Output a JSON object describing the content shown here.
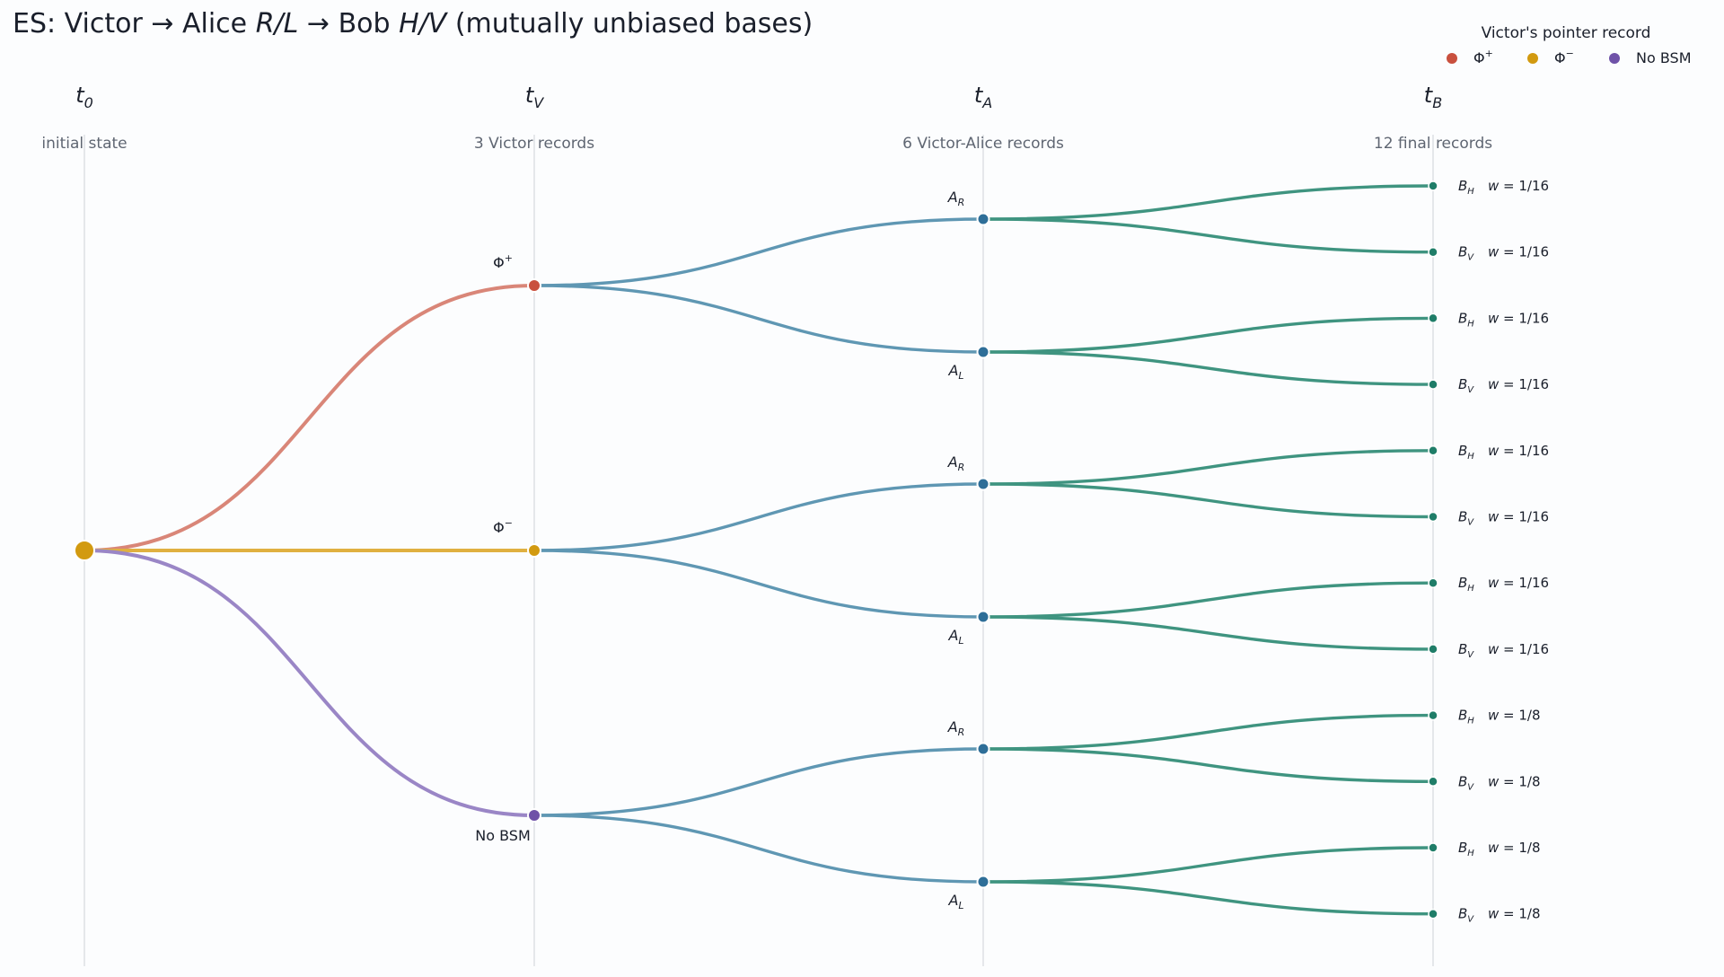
{
  "title": "ES: Victor → Alice R/L → Bob H/V (mutually unbiased bases)",
  "columns": [
    {
      "time": "t",
      "sub": "0",
      "subtitle": "initial state"
    },
    {
      "time": "t",
      "sub": "V",
      "subtitle": "3 Victor records"
    },
    {
      "time": "t",
      "sub": "A",
      "subtitle": "6 Victor-Alice records"
    },
    {
      "time": "t",
      "sub": "B",
      "subtitle": "12 final records"
    }
  ],
  "legend": {
    "title": "Victor's pointer record",
    "items": [
      {
        "label": "Φ",
        "sup": "+",
        "color": "#c9503e"
      },
      {
        "label": "Φ",
        "sup": "−",
        "color": "#d29a10"
      },
      {
        "label": "No BSM",
        "sup": "",
        "color": "#6f52a8"
      }
    ]
  },
  "colors": {
    "root": "#d29a10",
    "alice_edge": "#5f97b3",
    "alice_node": "#2e6e98",
    "bob_edge": "#3f9480",
    "bob_node": "#1f7d68"
  },
  "root": {
    "name": "initial state"
  },
  "victor": [
    {
      "label": "Φ",
      "sup": "+",
      "color": "#c9503e",
      "edge_color": "#d98678"
    },
    {
      "label": "Φ",
      "sup": "−",
      "color": "#d29a10",
      "edge_color": "#e0b040"
    },
    {
      "label": "No BSM",
      "sup": "",
      "color": "#6f52a8",
      "edge_color": "#9a86c6"
    }
  ],
  "alice": [
    {
      "letter": "A",
      "sub": "R",
      "parent": 0
    },
    {
      "letter": "A",
      "sub": "L",
      "parent": 0
    },
    {
      "letter": "A",
      "sub": "R",
      "parent": 1
    },
    {
      "letter": "A",
      "sub": "L",
      "parent": 1
    },
    {
      "letter": "A",
      "sub": "R",
      "parent": 2
    },
    {
      "letter": "A",
      "sub": "L",
      "parent": 2
    }
  ],
  "bob": [
    {
      "letter": "B",
      "sub": "H",
      "weight": "w = 1/16",
      "parent": 0
    },
    {
      "letter": "B",
      "sub": "V",
      "weight": "w = 1/16",
      "parent": 0
    },
    {
      "letter": "B",
      "sub": "H",
      "weight": "w = 1/16",
      "parent": 1
    },
    {
      "letter": "B",
      "sub": "V",
      "weight": "w = 1/16",
      "parent": 1
    },
    {
      "letter": "B",
      "sub": "H",
      "weight": "w = 1/16",
      "parent": 2
    },
    {
      "letter": "B",
      "sub": "V",
      "weight": "w = 1/16",
      "parent": 2
    },
    {
      "letter": "B",
      "sub": "H",
      "weight": "w = 1/16",
      "parent": 3
    },
    {
      "letter": "B",
      "sub": "V",
      "weight": "w = 1/16",
      "parent": 3
    },
    {
      "letter": "B",
      "sub": "H",
      "weight": "w = 1/8",
      "parent": 4
    },
    {
      "letter": "B",
      "sub": "V",
      "weight": "w = 1/8",
      "parent": 4
    },
    {
      "letter": "B",
      "sub": "H",
      "weight": "w = 1/8",
      "parent": 5
    },
    {
      "letter": "B",
      "sub": "V",
      "weight": "w = 1/8",
      "parent": 5
    }
  ]
}
